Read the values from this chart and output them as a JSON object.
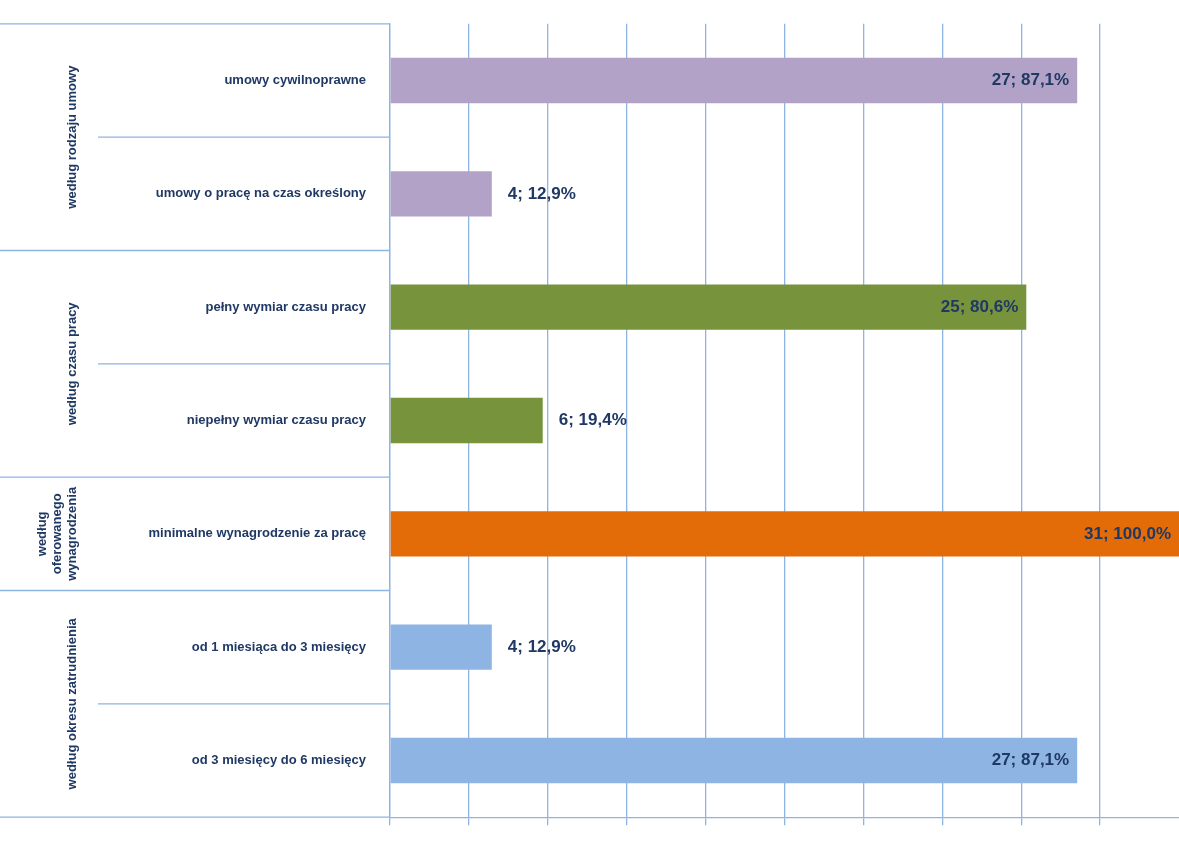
{
  "chart_data": {
    "type": "bar",
    "orientation": "horizontal",
    "categories": [
      "umowy cywilnoprawne",
      "umowy o pracę na czas określony",
      "pełny wymiar czasu pracy",
      "niepełny wymiar czasu pracy",
      "minimalne wynagrodzenie za pracę",
      "od 1 miesiąca do 3 miesięcy",
      "od 3 miesięcy do 6 miesięcy"
    ],
    "series": [
      {
        "color": "#b3a2c7",
        "values": [
          27,
          4,
          null,
          null,
          null,
          null,
          null
        ],
        "value_labels": [
          "27; 87,1%",
          "4; 12,9%",
          null,
          null,
          null,
          null,
          null
        ]
      },
      {
        "color": "#77933c",
        "values": [
          null,
          null,
          25,
          6,
          null,
          null,
          null
        ],
        "value_labels": [
          null,
          null,
          "25; 80,6%",
          "6; 19,4%",
          null,
          null,
          null
        ]
      },
      {
        "color": "#e36c09",
        "values": [
          null,
          null,
          null,
          null,
          31,
          null,
          null
        ],
        "value_labels": [
          null,
          null,
          null,
          null,
          "31; 100,0%",
          null,
          null
        ]
      },
      {
        "color": "#8eb4e3",
        "values": [
          null,
          null,
          null,
          null,
          null,
          4,
          27
        ],
        "value_labels": [
          null,
          null,
          null,
          null,
          null,
          "4; 12,9%",
          "27; 87,1%"
        ]
      }
    ],
    "xlim": [
      0,
      31
    ],
    "xticks": [
      {
        "value": 0,
        "label": null
      },
      {
        "value": 3.1,
        "label": null
      },
      {
        "value": 6.2,
        "label": null
      },
      {
        "value": 9.3,
        "label": null
      },
      {
        "value": 12.4,
        "label": null
      },
      {
        "value": 15.5,
        "label": null
      },
      {
        "value": 18.6,
        "label": null
      },
      {
        "value": 21.7,
        "label": null
      },
      {
        "value": 24.8,
        "label": null
      },
      {
        "value": 27.9,
        "label": null
      }
    ],
    "annotations": [
      "według rodzaju umowy",
      "według czasu pracy",
      "według oferowanego wynagrodzenia",
      "według okresu zatrudnienia"
    ],
    "grid": "x",
    "legend": false,
    "tick_labels": "y"
  }
}
